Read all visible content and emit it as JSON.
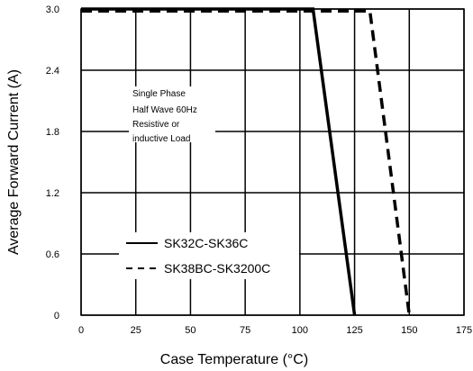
{
  "chart_data": {
    "type": "line",
    "xlabel": "Case Temperature (°C)",
    "ylabel": "Average Forward Current  (A)",
    "xlim": [
      0,
      175
    ],
    "ylim": [
      0,
      3.0
    ],
    "x_ticks": [
      "0",
      "25",
      "50",
      "75",
      "100",
      "125",
      "150",
      "175"
    ],
    "y_ticks": [
      "0",
      "0.6",
      "1.2",
      "1.8",
      "2.4",
      "3.0"
    ],
    "grid": true,
    "legend_position": "bottom-left",
    "annotation": [
      "Single Phase",
      "Half Wave 60Hz",
      "Resistive or",
      "inductive Load"
    ],
    "series": [
      {
        "name": "SK32C-SK36C",
        "line_style": "solid",
        "x": [
          0,
          106,
          125
        ],
        "y": [
          3.0,
          3.0,
          0
        ]
      },
      {
        "name": "SK38BC-SK3200C",
        "line_style": "dashed",
        "x": [
          0,
          132,
          150
        ],
        "y": [
          2.98,
          2.98,
          0
        ]
      }
    ]
  }
}
